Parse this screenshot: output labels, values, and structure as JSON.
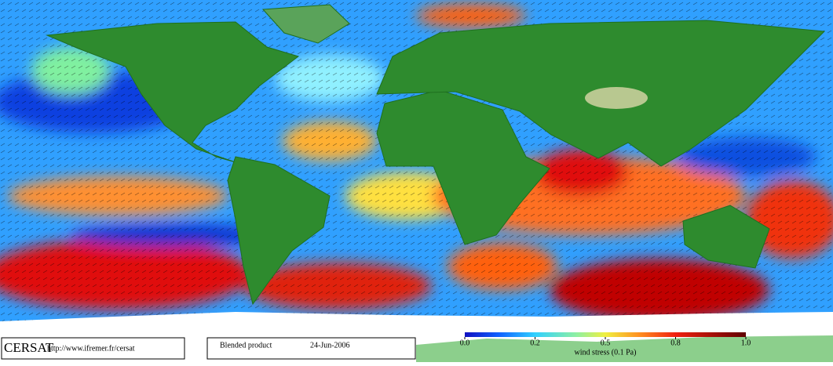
{
  "footer": {
    "logo": "CERSAT",
    "url": "http://www.ifremer.fr/cersat",
    "product": "Blended product",
    "date": "24-Jun-2006"
  },
  "colorbar": {
    "label": "wind stress (0.1 Pa)",
    "ticks": [
      {
        "value": 0,
        "label": "0.0"
      },
      {
        "value": 0.2,
        "label": "0.2"
      },
      {
        "value": 0.5,
        "label": "0.5"
      },
      {
        "value": 0.8,
        "label": "0.8"
      },
      {
        "value": 1,
        "label": "1.0"
      }
    ]
  }
}
